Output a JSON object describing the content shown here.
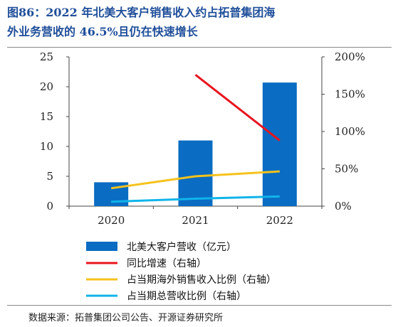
{
  "header": {
    "title_line1": "图86：2022 年北美大客户销售收入约占拓普集团海",
    "title_line2": "外业务营收的 46.5%且仍在快速增长"
  },
  "footer": {
    "source": "数据来源：拓普集团公司公告、开源证券研究所"
  },
  "colors": {
    "title": "#1f4e9a",
    "bar": "#0a6cc2",
    "yoy_line": "#e8141e",
    "overseas_share_line": "#f6c21c",
    "total_share_line": "#10b4ea"
  },
  "chart_data": {
    "type": "bar",
    "categories": [
      "2020",
      "2021",
      "2022"
    ],
    "y_left": {
      "ylim": [
        0,
        25
      ],
      "ticks": [
        0,
        5,
        10,
        15,
        20,
        25
      ],
      "tick_labels": [
        "0",
        "5",
        "10",
        "15",
        "20",
        "25"
      ]
    },
    "y_right": {
      "ylim": [
        0,
        200
      ],
      "ticks": [
        0,
        50,
        100,
        150,
        200
      ],
      "tick_labels": [
        "0%",
        "50%",
        "100%",
        "150%",
        "200%"
      ]
    },
    "series": [
      {
        "name": "北美大客户营收（亿元）",
        "type": "bar",
        "axis": "left",
        "color": "#0a6cc2",
        "values": [
          4.0,
          11.0,
          20.7
        ]
      },
      {
        "name": "同比增速（右轴）",
        "type": "line",
        "axis": "right",
        "color": "#e8141e",
        "values": [
          null,
          176,
          88
        ]
      },
      {
        "name": "占当期海外销售收入比例（右轴）",
        "type": "line",
        "axis": "right",
        "color": "#f6c21c",
        "values": [
          24,
          40,
          46.5
        ]
      },
      {
        "name": "占当期总营收比例（右轴）",
        "type": "line",
        "axis": "right",
        "color": "#10b4ea",
        "values": [
          6,
          10,
          13
        ]
      }
    ],
    "grid": false,
    "legend_position": "bottom"
  }
}
